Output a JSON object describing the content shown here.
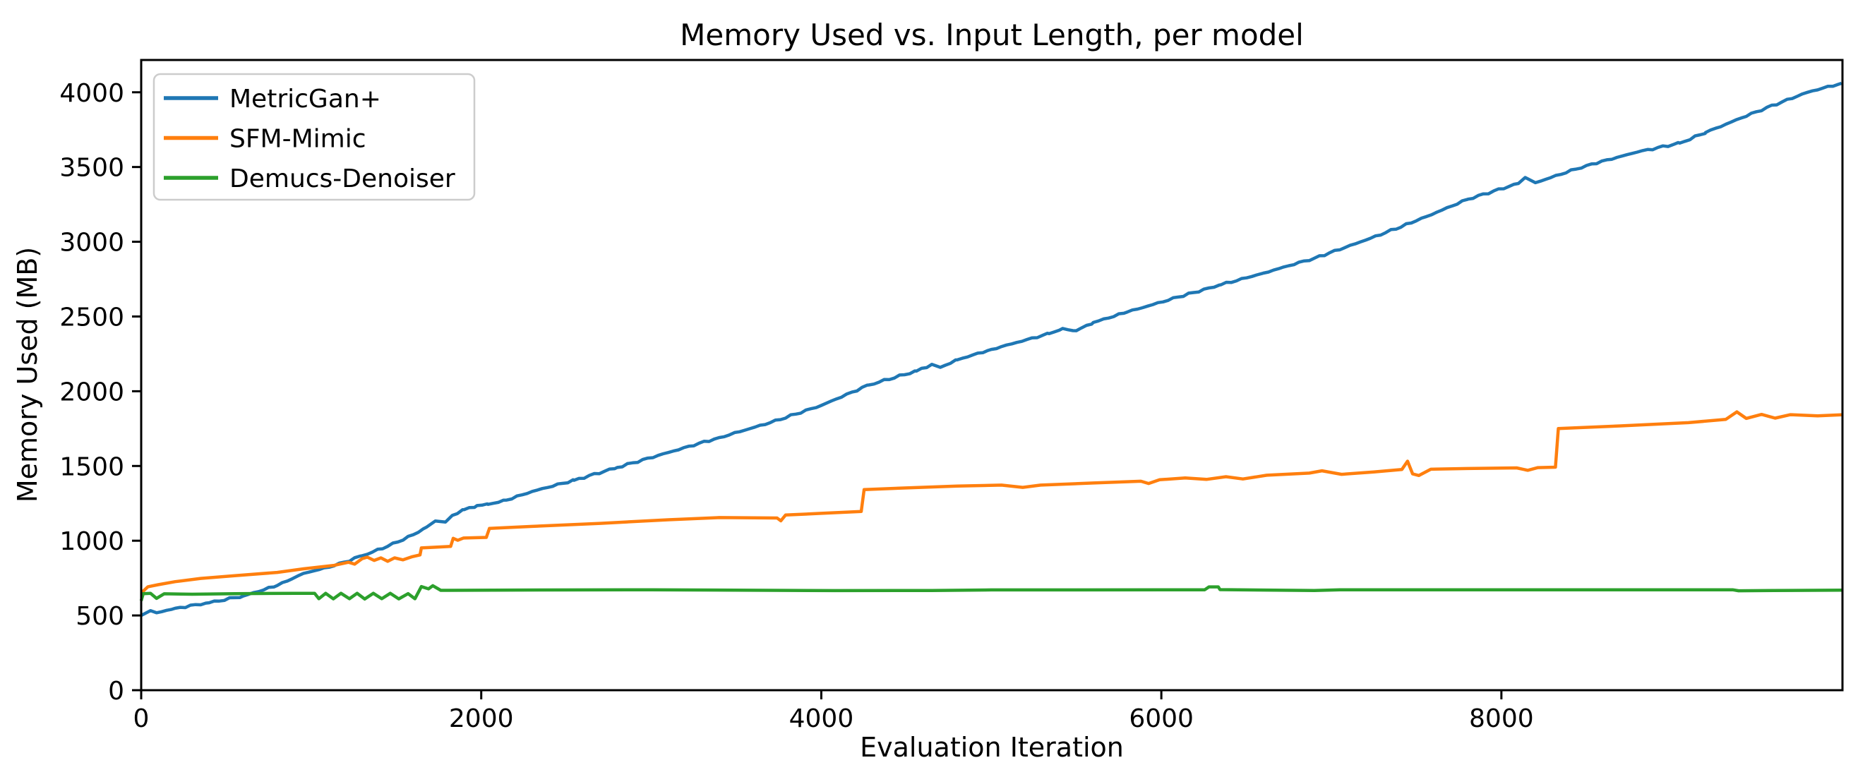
{
  "chart_data": {
    "type": "line",
    "title": "Memory Used vs. Input Length, per model",
    "xlabel": "Evaluation Iteration",
    "ylabel": "Memory Used (MB)",
    "xlim": [
      0,
      10006
    ],
    "ylim": [
      0,
      4216
    ],
    "x_ticks": [
      0,
      2000,
      4000,
      6000,
      8000
    ],
    "y_ticks": [
      0,
      500,
      1000,
      1500,
      2000,
      2500,
      3000,
      3500,
      4000
    ],
    "grid": false,
    "legend_position": "upper left",
    "axis_color": "#000000",
    "background_color": "#ffffff",
    "legend_border_color": "#cccccc",
    "series": [
      {
        "name": "MetricGan+",
        "color": "#1f77b4",
        "points": [
          [
            0,
            500
          ],
          [
            55,
            532
          ],
          [
            90,
            518
          ],
          [
            200,
            548
          ],
          [
            400,
            585
          ],
          [
            600,
            630
          ],
          [
            800,
            700
          ],
          [
            955,
            782
          ],
          [
            1135,
            832
          ],
          [
            1300,
            900
          ],
          [
            1450,
            962
          ],
          [
            1600,
            1040
          ],
          [
            1680,
            1092
          ],
          [
            1730,
            1132
          ],
          [
            1790,
            1125
          ],
          [
            1830,
            1170
          ],
          [
            1900,
            1208
          ],
          [
            1975,
            1235
          ],
          [
            2040,
            1243
          ],
          [
            2150,
            1272
          ],
          [
            2300,
            1330
          ],
          [
            2545,
            1404
          ],
          [
            2800,
            1490
          ],
          [
            3100,
            1590
          ],
          [
            3400,
            1690
          ],
          [
            3700,
            1790
          ],
          [
            4000,
            1905
          ],
          [
            4280,
            2042
          ],
          [
            4560,
            2135
          ],
          [
            4650,
            2180
          ],
          [
            4700,
            2160
          ],
          [
            4800,
            2210
          ],
          [
            5000,
            2280
          ],
          [
            5340,
            2385
          ],
          [
            5420,
            2420
          ],
          [
            5500,
            2405
          ],
          [
            5600,
            2460
          ],
          [
            5800,
            2530
          ],
          [
            6100,
            2630
          ],
          [
            6352,
            2713
          ],
          [
            6600,
            2790
          ],
          [
            6900,
            2890
          ],
          [
            7200,
            3010
          ],
          [
            7500,
            3140
          ],
          [
            7804,
            3285
          ],
          [
            8100,
            3390
          ],
          [
            8140,
            3430
          ],
          [
            8200,
            3395
          ],
          [
            8500,
            3510
          ],
          [
            8800,
            3600
          ],
          [
            9049,
            3660
          ],
          [
            9200,
            3730
          ],
          [
            9350,
            3800
          ],
          [
            9500,
            3870
          ],
          [
            9650,
            3935
          ],
          [
            9800,
            4000
          ],
          [
            10000,
            4060
          ]
        ]
      },
      {
        "name": "SFM-Mimic",
        "color": "#ff7f0e",
        "points": [
          [
            0,
            650
          ],
          [
            40,
            692
          ],
          [
            100,
            706
          ],
          [
            200,
            726
          ],
          [
            350,
            748
          ],
          [
            550,
            766
          ],
          [
            800,
            788
          ],
          [
            955,
            812
          ],
          [
            1135,
            835
          ],
          [
            1220,
            856
          ],
          [
            1255,
            843
          ],
          [
            1300,
            880
          ],
          [
            1330,
            890
          ],
          [
            1370,
            868
          ],
          [
            1410,
            885
          ],
          [
            1450,
            862
          ],
          [
            1490,
            885
          ],
          [
            1540,
            872
          ],
          [
            1590,
            892
          ],
          [
            1640,
            905
          ],
          [
            1648,
            952
          ],
          [
            1720,
            956
          ],
          [
            1820,
            962
          ],
          [
            1835,
            1016
          ],
          [
            1862,
            1003
          ],
          [
            1895,
            1018
          ],
          [
            2030,
            1022
          ],
          [
            2048,
            1082
          ],
          [
            2300,
            1096
          ],
          [
            2700,
            1116
          ],
          [
            3100,
            1140
          ],
          [
            3400,
            1155
          ],
          [
            3740,
            1152
          ],
          [
            3762,
            1133
          ],
          [
            3790,
            1172
          ],
          [
            4000,
            1183
          ],
          [
            4235,
            1196
          ],
          [
            4252,
            1342
          ],
          [
            4500,
            1353
          ],
          [
            4800,
            1366
          ],
          [
            5060,
            1372
          ],
          [
            5185,
            1357
          ],
          [
            5290,
            1372
          ],
          [
            5600,
            1386
          ],
          [
            5880,
            1398
          ],
          [
            5925,
            1383
          ],
          [
            5990,
            1408
          ],
          [
            6140,
            1420
          ],
          [
            6265,
            1410
          ],
          [
            6380,
            1428
          ],
          [
            6480,
            1413
          ],
          [
            6620,
            1438
          ],
          [
            6870,
            1452
          ],
          [
            6945,
            1468
          ],
          [
            7060,
            1444
          ],
          [
            7250,
            1460
          ],
          [
            7415,
            1477
          ],
          [
            7448,
            1532
          ],
          [
            7478,
            1447
          ],
          [
            7515,
            1436
          ],
          [
            7585,
            1478
          ],
          [
            7800,
            1483
          ],
          [
            8090,
            1487
          ],
          [
            8155,
            1471
          ],
          [
            8215,
            1489
          ],
          [
            8318,
            1492
          ],
          [
            8335,
            1750
          ],
          [
            8700,
            1768
          ],
          [
            9100,
            1790
          ],
          [
            9320,
            1812
          ],
          [
            9385,
            1862
          ],
          [
            9440,
            1818
          ],
          [
            9530,
            1845
          ],
          [
            9610,
            1820
          ],
          [
            9700,
            1843
          ],
          [
            9860,
            1835
          ],
          [
            10000,
            1842
          ]
        ]
      },
      {
        "name": "Demucs-Denoiser",
        "color": "#2ca02c",
        "points": [
          [
            0,
            598
          ],
          [
            12,
            646
          ],
          [
            55,
            648
          ],
          [
            90,
            614
          ],
          [
            135,
            645
          ],
          [
            300,
            642
          ],
          [
            550,
            646
          ],
          [
            900,
            648
          ],
          [
            1020,
            648
          ],
          [
            1045,
            612
          ],
          [
            1085,
            648
          ],
          [
            1130,
            611
          ],
          [
            1175,
            648
          ],
          [
            1225,
            612
          ],
          [
            1270,
            648
          ],
          [
            1315,
            610
          ],
          [
            1365,
            648
          ],
          [
            1415,
            612
          ],
          [
            1465,
            648
          ],
          [
            1515,
            611
          ],
          [
            1570,
            646
          ],
          [
            1610,
            612
          ],
          [
            1648,
            693
          ],
          [
            1690,
            678
          ],
          [
            1715,
            699
          ],
          [
            1762,
            668
          ],
          [
            2200,
            670
          ],
          [
            3000,
            672
          ],
          [
            4080,
            666
          ],
          [
            4650,
            667
          ],
          [
            5000,
            671
          ],
          [
            6255,
            672
          ],
          [
            6280,
            691
          ],
          [
            6335,
            691
          ],
          [
            6345,
            673
          ],
          [
            6900,
            667
          ],
          [
            7050,
            672
          ],
          [
            9360,
            672
          ],
          [
            9395,
            665
          ],
          [
            9600,
            667
          ],
          [
            10000,
            669
          ]
        ]
      }
    ]
  }
}
